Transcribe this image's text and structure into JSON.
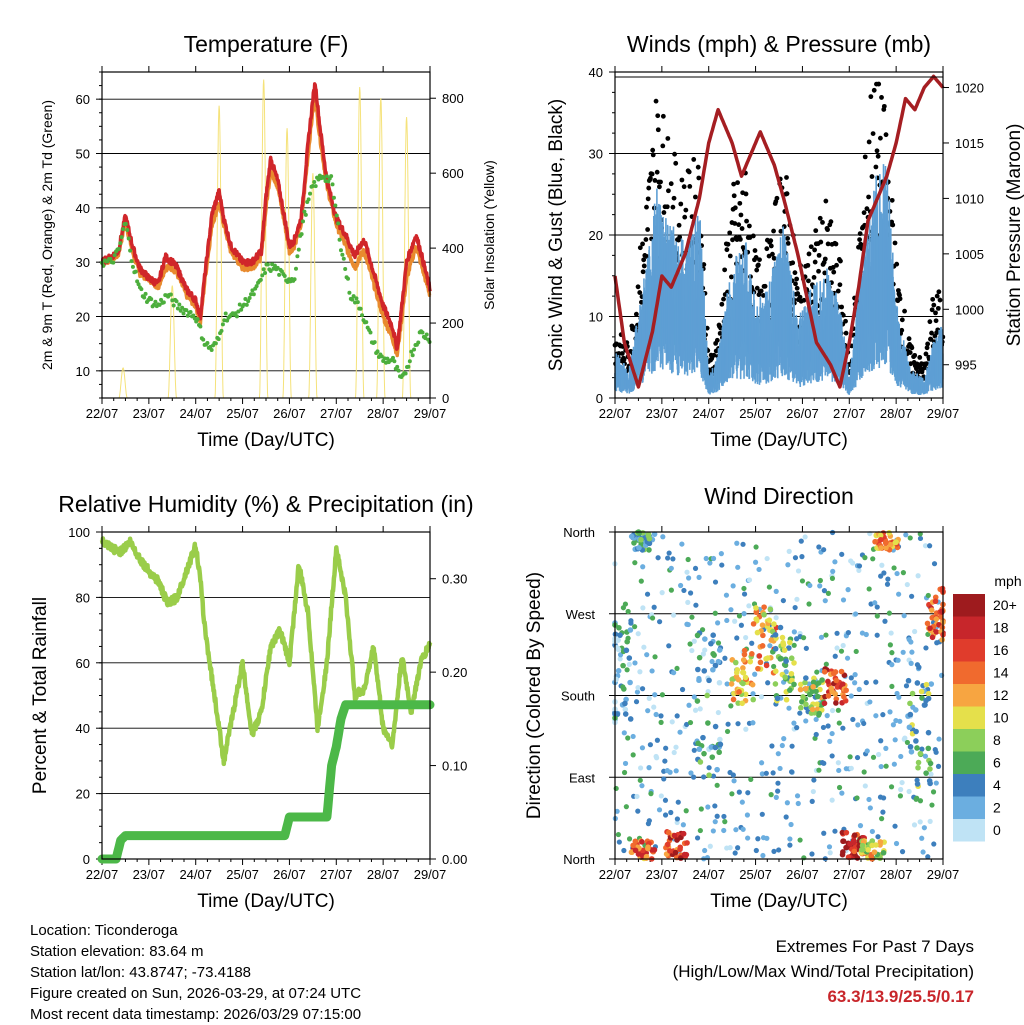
{
  "x_ticks": [
    "22/07",
    "23/07",
    "24/07",
    "25/07",
    "26/07",
    "27/07",
    "28/07",
    "29/07"
  ],
  "footer": {
    "location": "Location: Ticonderoga",
    "elevation": "Station elevation: 83.64 m",
    "latlon": "Station lat/lon: 43.8747; -73.4188",
    "created": "Figure created on Sun, 2026-03-29, at 07:24 UTC",
    "recent": "Most recent data timestamp: 2026/03/29 07:15:00"
  },
  "extremes": {
    "heading": "Extremes For Past 7 Days",
    "subheading": "(High/Low/Max Wind/Total Precipitation)",
    "values": "63.3/13.9/25.5/0.17"
  },
  "colors": {
    "temp2m": "#e88a2e",
    "temp9m": "#d0262a",
    "dewpoint": "#4cae3c",
    "solar": "#f5e27a",
    "wind": "#5e9fd4",
    "gust": "#000000",
    "pressure": "#a51e22",
    "rh": "#9acd4a",
    "rain": "#4cb848"
  },
  "chart_data": [
    {
      "type": "line",
      "title": "Temperature (F)",
      "xlabel": "Time (Day/UTC)",
      "ylabel": "2m & 9m T (Red, Orange) & 2m Td (Green)",
      "ylabel_right": "Solar Insolation (Yellow)",
      "ylim": [
        5,
        65
      ],
      "yticks": [
        10,
        20,
        30,
        40,
        50,
        60
      ],
      "ylim_right": [
        0,
        870
      ],
      "yticks_right": [
        0,
        200,
        400,
        600,
        800
      ],
      "x_days": [
        0,
        7
      ],
      "series": [
        {
          "name": "9m T (Red)",
          "x": [
            0,
            0.2,
            0.35,
            0.5,
            0.65,
            0.8,
            1.0,
            1.2,
            1.35,
            1.5,
            1.6,
            1.8,
            2.0,
            2.1,
            2.2,
            2.35,
            2.5,
            2.6,
            2.75,
            3.0,
            3.2,
            3.4,
            3.5,
            3.6,
            3.75,
            3.9,
            4.0,
            4.1,
            4.25,
            4.4,
            4.5,
            4.55,
            4.65,
            4.8,
            5.0,
            5.2,
            5.4,
            5.5,
            5.6,
            5.8,
            6.0,
            6.2,
            6.3,
            6.5,
            6.7,
            6.8,
            7.0
          ],
          "values": [
            30,
            31,
            32,
            38.5,
            33,
            29,
            27,
            26,
            31,
            30,
            29,
            25,
            23,
            20,
            28,
            39,
            43,
            38,
            33,
            30,
            30,
            32,
            42,
            49,
            45,
            38,
            33,
            34,
            38,
            52,
            60,
            63,
            55,
            45,
            38,
            35,
            31,
            33,
            34,
            28,
            22,
            18,
            14,
            30,
            35,
            32,
            25
          ]
        },
        {
          "name": "2m T (Orange)",
          "x": [
            0,
            0.2,
            0.35,
            0.5,
            0.65,
            0.8,
            1.0,
            1.2,
            1.35,
            1.5,
            1.6,
            1.8,
            2.0,
            2.1,
            2.2,
            2.35,
            2.5,
            2.6,
            2.75,
            3.0,
            3.2,
            3.4,
            3.5,
            3.6,
            3.75,
            3.9,
            4.0,
            4.1,
            4.25,
            4.4,
            4.5,
            4.55,
            4.65,
            4.8,
            5.0,
            5.2,
            5.4,
            5.5,
            5.6,
            5.8,
            6.0,
            6.2,
            6.3,
            6.5,
            6.7,
            6.8,
            7.0
          ],
          "values": [
            30,
            30.5,
            31.5,
            37.5,
            32,
            28,
            27,
            25.5,
            29,
            29,
            28,
            24,
            22,
            19,
            27,
            37,
            41,
            37,
            32,
            29,
            29,
            31,
            40,
            47,
            44,
            37,
            32,
            33,
            37,
            50,
            58,
            60,
            53,
            44,
            37,
            33,
            29,
            31,
            32,
            26,
            20,
            16,
            13,
            27,
            33,
            30,
            24
          ]
        },
        {
          "name": "2m Td (Green)",
          "x": [
            0,
            0.2,
            0.35,
            0.5,
            0.65,
            0.8,
            1.0,
            1.2,
            1.4,
            1.6,
            1.8,
            2.0,
            2.2,
            2.35,
            2.5,
            2.6,
            2.8,
            3.0,
            3.3,
            3.5,
            3.7,
            3.9,
            4.1,
            4.3,
            4.5,
            4.7,
            4.9,
            5.1,
            5.3,
            5.5,
            5.7,
            5.9,
            6.0,
            6.2,
            6.4,
            6.6,
            6.8,
            7.0
          ],
          "values": [
            30,
            30,
            32,
            37.5,
            30,
            25,
            23,
            22,
            24,
            22,
            21,
            20,
            15,
            14,
            16,
            20,
            20,
            22,
            25,
            29,
            29,
            27,
            27,
            38,
            44,
            46,
            45,
            33,
            24,
            22,
            17,
            13,
            12,
            12,
            8,
            13,
            17,
            16
          ]
        }
      ],
      "solar": {
        "name": "Solar Insolation (Yellow)",
        "peak_days": [
          0.45,
          1.5,
          2.5,
          3.45,
          3.95,
          4.5,
          5.5,
          5.95,
          6.5
        ],
        "peak_values": [
          80,
          300,
          780,
          850,
          720,
          600,
          830,
          800,
          750
        ]
      }
    },
    {
      "type": "scatter",
      "title": "Winds (mph) & Pressure (mb)",
      "xlabel": "Time (Day/UTC)",
      "ylabel": "Sonic Wind & Gust (Blue, Black)",
      "ylabel_right": "Station Pressure (Maroon)",
      "ylim": [
        0,
        40
      ],
      "yticks": [
        0,
        10,
        20,
        30,
        40
      ],
      "ylim_right": [
        992,
        1021.4
      ],
      "yticks_right": [
        995,
        1000,
        1005,
        1010,
        1015,
        1020
      ],
      "wind_envelope": {
        "x": [
          0,
          0.3,
          0.6,
          0.9,
          1.2,
          1.5,
          1.8,
          2.0,
          2.2,
          2.5,
          2.8,
          3.0,
          3.3,
          3.6,
          3.9,
          4.2,
          4.5,
          4.8,
          5.0,
          5.2,
          5.5,
          5.8,
          6.0,
          6.3,
          6.6,
          6.8,
          7.0
        ],
        "values": [
          5,
          3,
          12,
          22,
          18,
          16,
          20,
          2,
          5,
          14,
          16,
          10,
          12,
          18,
          8,
          12,
          14,
          10,
          2,
          12,
          22,
          25,
          10,
          3,
          2,
          6,
          8
        ]
      },
      "gust_envelope": {
        "x": [
          0,
          0.3,
          0.6,
          0.9,
          1.2,
          1.5,
          1.8,
          2.0,
          2.2,
          2.5,
          2.8,
          3.0,
          3.3,
          3.6,
          3.9,
          4.2,
          4.5,
          4.8,
          5.0,
          5.2,
          5.5,
          5.8,
          6.0,
          6.3,
          6.6,
          6.8,
          7.0
        ],
        "values": [
          8,
          6,
          20,
          36,
          28,
          25,
          28,
          4,
          8,
          24,
          26,
          16,
          18,
          28,
          14,
          18,
          22,
          16,
          4,
          18,
          38,
          32,
          16,
          6,
          4,
          12,
          12
        ]
      },
      "pressure": {
        "name": "Station Pressure",
        "x": [
          0,
          0.2,
          0.5,
          0.8,
          1.0,
          1.2,
          1.5,
          1.8,
          2.0,
          2.2,
          2.5,
          2.7,
          2.9,
          3.1,
          3.4,
          3.6,
          3.9,
          4.1,
          4.3,
          4.6,
          4.8,
          5.0,
          5.2,
          5.4,
          5.6,
          5.8,
          6.0,
          6.2,
          6.4,
          6.6,
          6.8,
          7.0
        ],
        "values": [
          1003,
          997,
          993,
          998,
          1003,
          1002,
          1005,
          1010,
          1015,
          1018,
          1015,
          1012,
          1014,
          1016,
          1013,
          1010,
          1005,
          1001,
          997,
          995,
          993,
          997,
          1002,
          1008,
          1010,
          1012,
          1015,
          1019,
          1018,
          1020,
          1021,
          1020
        ]
      }
    },
    {
      "type": "line",
      "title": "Relative Humidity (%) & Precipitation (in)",
      "xlabel": "Time (Day/UTC)",
      "ylabel": "Percent & Total Rainfall",
      "ylim": [
        0,
        100
      ],
      "yticks": [
        0,
        20,
        40,
        60,
        80,
        100
      ],
      "ylim_right": [
        0,
        0.35
      ],
      "yticks_right": [
        "0.00",
        "0.10",
        "0.20",
        "0.30"
      ],
      "series": [
        {
          "name": "Relative Humidity",
          "x": [
            0,
            0.2,
            0.4,
            0.6,
            0.8,
            1.0,
            1.2,
            1.4,
            1.6,
            1.8,
            2.0,
            2.1,
            2.2,
            2.4,
            2.6,
            2.8,
            3.0,
            3.2,
            3.4,
            3.6,
            3.8,
            4.0,
            4.2,
            4.4,
            4.6,
            4.8,
            5.0,
            5.2,
            5.4,
            5.6,
            5.8,
            6.0,
            6.2,
            6.4,
            6.6,
            6.8,
            7.0
          ],
          "values": [
            97,
            95,
            94,
            97,
            92,
            88,
            85,
            78,
            80,
            88,
            96,
            85,
            70,
            50,
            30,
            45,
            60,
            38,
            45,
            65,
            70,
            60,
            90,
            75,
            40,
            60,
            95,
            80,
            50,
            52,
            65,
            40,
            35,
            62,
            45,
            60,
            66
          ]
        },
        {
          "name": "Total Rainfall",
          "x": [
            0,
            0.3,
            0.4,
            0.5,
            1.0,
            2.0,
            3.0,
            3.9,
            4.0,
            4.5,
            4.8,
            4.9,
            5.0,
            5.1,
            5.2,
            7.0
          ],
          "values": [
            0,
            0,
            0.02,
            0.025,
            0.025,
            0.025,
            0.025,
            0.025,
            0.045,
            0.045,
            0.045,
            0.1,
            0.12,
            0.15,
            0.165,
            0.165
          ]
        }
      ]
    },
    {
      "type": "scatter",
      "title": "Wind Direction",
      "xlabel": "Time (Day/UTC)",
      "ylabel": "Direction (Colored By Speed)",
      "ylabels": [
        "North",
        "East",
        "South",
        "West",
        "North"
      ],
      "yvalues": [
        0,
        90,
        180,
        270,
        360
      ],
      "colorbar_title": "mph",
      "colorbar_labels": [
        "20+",
        "18",
        "16",
        "14",
        "12",
        "10",
        "8",
        "6",
        "4",
        "2",
        "0"
      ],
      "colorbar_colors": [
        "#9e1b1e",
        "#c7262b",
        "#e03c2c",
        "#f06a2e",
        "#f7a541",
        "#e5e04b",
        "#8ccf5a",
        "#4caa57",
        "#3d7fbd",
        "#6baee0",
        "#bfe3f5"
      ],
      "clusters": [
        {
          "day": 0.1,
          "dir_lo": 150,
          "dir_hi": 260,
          "speed": 3
        },
        {
          "day": 0.6,
          "dir_lo": 340,
          "dir_hi": 360,
          "speed": 5
        },
        {
          "day": 0.6,
          "dir_lo": 0,
          "dir_hi": 20,
          "speed": 14
        },
        {
          "day": 1.3,
          "dir_lo": 0,
          "dir_hi": 30,
          "speed": 16
        },
        {
          "day": 2.0,
          "dir_lo": 90,
          "dir_hi": 250,
          "speed": 4
        },
        {
          "day": 2.7,
          "dir_lo": 170,
          "dir_hi": 230,
          "speed": 11
        },
        {
          "day": 3.2,
          "dir_lo": 200,
          "dir_hi": 280,
          "speed": 12
        },
        {
          "day": 3.6,
          "dir_lo": 170,
          "dir_hi": 260,
          "speed": 7
        },
        {
          "day": 4.2,
          "dir_lo": 160,
          "dir_hi": 200,
          "speed": 8
        },
        {
          "day": 4.7,
          "dir_lo": 170,
          "dir_hi": 210,
          "speed": 16
        },
        {
          "day": 5.1,
          "dir_lo": 0,
          "dir_hi": 30,
          "speed": 18
        },
        {
          "day": 5.8,
          "dir_lo": 340,
          "dir_hi": 360,
          "speed": 13
        },
        {
          "day": 5.5,
          "dir_lo": 0,
          "dir_hi": 20,
          "speed": 10
        },
        {
          "day": 6.5,
          "dir_lo": 80,
          "dir_hi": 200,
          "speed": 6
        },
        {
          "day": 6.9,
          "dir_lo": 240,
          "dir_hi": 300,
          "speed": 15
        }
      ]
    }
  ]
}
